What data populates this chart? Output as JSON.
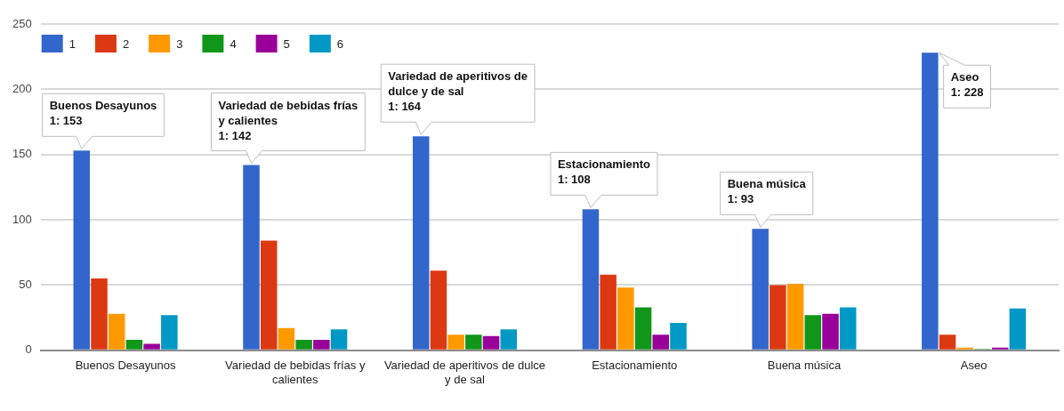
{
  "chart_data": {
    "type": "bar",
    "categories": [
      "Buenos Desayunos",
      "Variedad de bebidas frías y calientes",
      "Variedad de aperitivos de dulce y de sal",
      "Estacionamiento",
      "Buena música",
      "Aseo"
    ],
    "series": [
      {
        "name": "1",
        "color": "#3366cc",
        "values": [
          153,
          142,
          164,
          108,
          93,
          228
        ]
      },
      {
        "name": "2",
        "color": "#dc3912",
        "values": [
          55,
          84,
          61,
          58,
          50,
          12
        ]
      },
      {
        "name": "3",
        "color": "#ff9900",
        "values": [
          28,
          17,
          12,
          48,
          51,
          2
        ]
      },
      {
        "name": "4",
        "color": "#109618",
        "values": [
          8,
          8,
          12,
          33,
          27,
          1
        ]
      },
      {
        "name": "5",
        "color": "#990099",
        "values": [
          5,
          8,
          11,
          12,
          28,
          2
        ]
      },
      {
        "name": "6",
        "color": "#0099c6",
        "values": [
          27,
          16,
          16,
          21,
          33,
          32
        ]
      }
    ],
    "ylim": [
      0,
      250
    ],
    "yticks": [
      0,
      50,
      100,
      150,
      200,
      250
    ],
    "grid": "y",
    "legend": "top left",
    "annotations": [
      "Buenos Desayunos\n1: 153",
      "Variedad de bebidas frías y calientes\n1: 142",
      "Variedad de aperitivos de dulce y de sal\n1: 164",
      "Estacionamiento\n1: 108",
      "Buena música\n1: 93",
      "Aseo\n1: 228"
    ]
  }
}
